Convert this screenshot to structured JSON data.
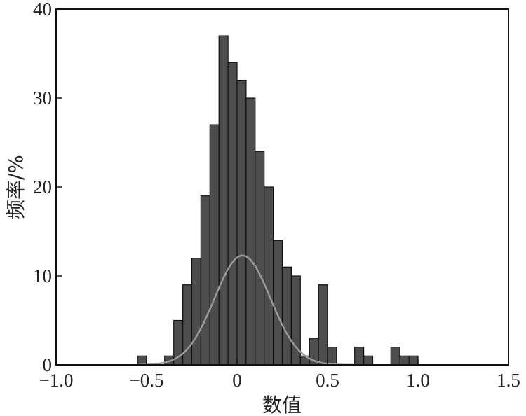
{
  "chart_data": {
    "type": "bar",
    "title": "",
    "xlabel": "数值",
    "ylabel": "频率/%",
    "xlim": [
      -1.0,
      1.5
    ],
    "ylim": [
      0,
      40
    ],
    "x_ticks": [
      "−1.0",
      "−0.5",
      "0",
      "0.5",
      "1.0",
      "1.5"
    ],
    "y_ticks": [
      "0",
      "10",
      "20",
      "30",
      "40"
    ],
    "bin_width": 0.05,
    "bins": [
      {
        "x": -0.525,
        "value": 1
      },
      {
        "x": -0.375,
        "value": 1
      },
      {
        "x": -0.325,
        "value": 5
      },
      {
        "x": -0.275,
        "value": 9
      },
      {
        "x": -0.225,
        "value": 12
      },
      {
        "x": -0.175,
        "value": 19
      },
      {
        "x": -0.125,
        "value": 27
      },
      {
        "x": -0.075,
        "value": 37
      },
      {
        "x": -0.025,
        "value": 34
      },
      {
        "x": 0.025,
        "value": 32
      },
      {
        "x": 0.075,
        "value": 30
      },
      {
        "x": 0.125,
        "value": 24
      },
      {
        "x": 0.175,
        "value": 20
      },
      {
        "x": 0.225,
        "value": 14
      },
      {
        "x": 0.275,
        "value": 11
      },
      {
        "x": 0.325,
        "value": 10
      },
      {
        "x": 0.375,
        "value": 1
      },
      {
        "x": 0.425,
        "value": 3
      },
      {
        "x": 0.475,
        "value": 9
      },
      {
        "x": 0.525,
        "value": 2
      },
      {
        "x": 0.675,
        "value": 2
      },
      {
        "x": 0.725,
        "value": 1
      },
      {
        "x": 0.875,
        "value": 2
      },
      {
        "x": 0.925,
        "value": 1
      },
      {
        "x": 0.975,
        "value": 1
      }
    ],
    "fit_curve": {
      "type": "normal",
      "mean": 0.03,
      "sd": 0.155,
      "peak": 12.3,
      "x_range": [
        -0.55,
        0.66
      ]
    },
    "grid": false,
    "colors": {
      "bar_fill": "#4d4d4d",
      "bar_edge": "#111111",
      "curve": "#9a9a9a",
      "axis": "#111111"
    }
  }
}
